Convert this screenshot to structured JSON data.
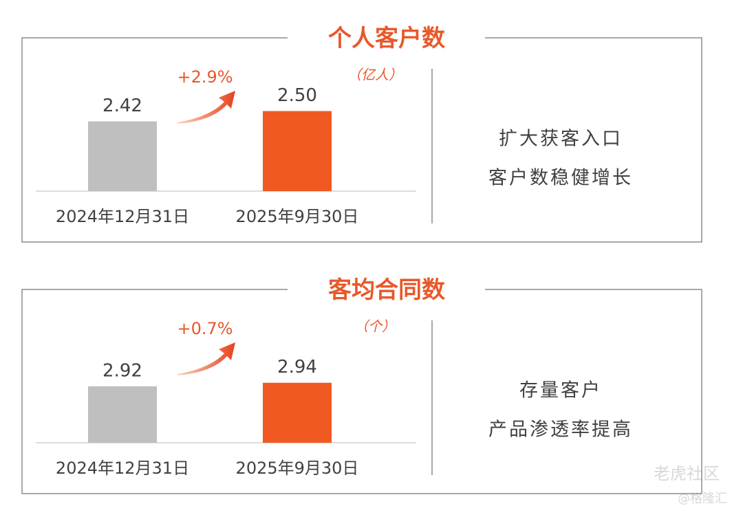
{
  "chart_data": [
    {
      "type": "bar",
      "title": "个人客户数",
      "unit": "（亿人）",
      "change": "+2.9%",
      "categories": [
        "2024年12月31日",
        "2025年9月30日"
      ],
      "values": [
        2.42,
        2.5
      ],
      "value_labels": [
        "2.42",
        "2.50"
      ],
      "colors": [
        "#bfbfbf",
        "#f05a22"
      ],
      "ylim": [
        1.88,
        2.7
      ],
      "notes": [
        "扩大获客入口",
        "客户数稳健增长"
      ]
    },
    {
      "type": "bar",
      "title": "客均合同数",
      "unit": "（个）",
      "change": "+0.7%",
      "categories": [
        "2024年12月31日",
        "2025年9月30日"
      ],
      "values": [
        2.92,
        2.94
      ],
      "value_labels": [
        "2.92",
        "2.94"
      ],
      "colors": [
        "#bfbfbf",
        "#f05a22"
      ],
      "ylim": [
        2.6,
        3.2
      ],
      "notes": [
        "存量客户",
        "产品渗透率提高"
      ]
    }
  ],
  "watermarks": [
    "老虎社区",
    "@格隆汇"
  ]
}
